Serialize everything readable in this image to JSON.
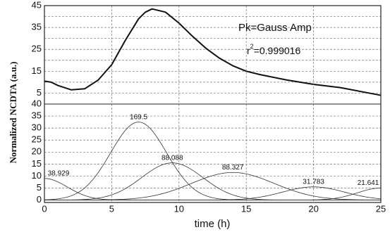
{
  "chart_data": [
    {
      "type": "line",
      "annotations": [
        "Pk=Gauss Amp",
        {
          "base": "r",
          "sup": "2",
          "rest": "=0.999016"
        }
      ],
      "x": [
        0,
        0.5,
        1,
        2,
        3,
        4,
        5,
        6,
        7,
        7.5,
        8,
        9,
        10,
        11,
        12,
        13,
        14,
        15,
        16,
        18,
        20,
        22,
        25
      ],
      "series": [
        {
          "color": "#111111",
          "values": [
            10.5,
            10,
            8.5,
            6.5,
            7,
            11,
            18,
            29,
            39,
            42,
            43.5,
            42,
            37,
            31,
            25.5,
            21,
            17.5,
            15,
            13.5,
            11,
            9,
            7.5,
            4
          ]
        }
      ],
      "xlim": [
        0,
        25
      ],
      "ylim": [
        0,
        45
      ],
      "yticks": [
        5,
        15,
        25,
        35,
        45
      ],
      "ygrid_minor": [
        10,
        20,
        30,
        40
      ],
      "grid": true
    },
    {
      "type": "gaussian-peaks",
      "xlabel": "time (h)",
      "ylabel": "Normalized NCDTA (a.u.)",
      "peaks": [
        {
          "label": "38.929",
          "center": 0,
          "amplitude": 9,
          "width": 1.7
        },
        {
          "label": "169.5",
          "center": 7,
          "amplitude": 32.5,
          "width": 2.08
        },
        {
          "label": "88.088",
          "center": 9.5,
          "amplitude": 15.5,
          "width": 2.27
        },
        {
          "label": "88.327",
          "center": 14,
          "amplitude": 11.5,
          "width": 3.06
        },
        {
          "label": "31.783",
          "center": 20,
          "amplitude": 5.5,
          "width": 2.3
        },
        {
          "label": "21.641",
          "center": 25,
          "amplitude": 5,
          "width": 1.73
        }
      ],
      "color": "#333333",
      "xlim": [
        0,
        25
      ],
      "xticks": [
        0,
        5,
        10,
        15,
        20,
        25
      ],
      "ylim": [
        -1,
        40
      ],
      "yticks": [
        0,
        5,
        10,
        15,
        20,
        25,
        30,
        35,
        40
      ],
      "grid": true
    }
  ]
}
